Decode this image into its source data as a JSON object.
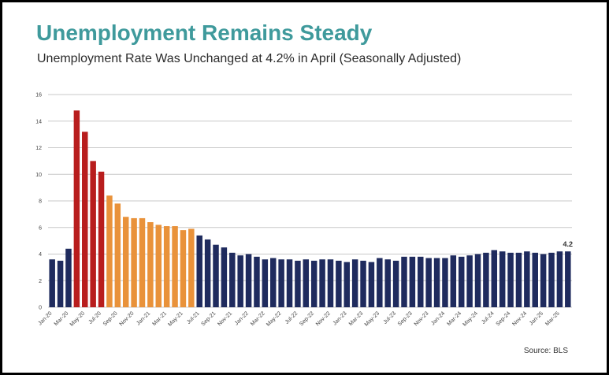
{
  "title": "Unemployment Remains Steady",
  "subtitle": "Unemployment Rate Was Unchanged at 4.2% in April (Seasonally Adjusted)",
  "source": "Source: BLS",
  "chart_data": {
    "type": "bar",
    "ylim": [
      0,
      16
    ],
    "yticks": [
      0,
      2,
      4,
      6,
      8,
      10,
      12,
      14,
      16
    ],
    "grid": true,
    "legend": "none",
    "colors": {
      "navy": "#1f2b5e",
      "red": "#b81d1d",
      "orange": "#e9923a"
    },
    "categories": [
      "Jan-20",
      "Feb-20",
      "Mar-20",
      "Apr-20",
      "May-20",
      "Jun-20",
      "Jul-20",
      "Aug-20",
      "Sep-20",
      "Oct-20",
      "Nov-20",
      "Dec-20",
      "Jan-21",
      "Feb-21",
      "Mar-21",
      "Apr-21",
      "May-21",
      "Jun-21",
      "Jul-21",
      "Aug-21",
      "Sep-21",
      "Oct-21",
      "Nov-21",
      "Dec-21",
      "Jan-22",
      "Feb-22",
      "Mar-22",
      "Apr-22",
      "May-22",
      "Jun-22",
      "Jul-22",
      "Aug-22",
      "Sep-22",
      "Oct-22",
      "Nov-22",
      "Dec-22",
      "Jan-23",
      "Feb-23",
      "Mar-23",
      "Apr-23",
      "May-23",
      "Jun-23",
      "Jul-23",
      "Aug-23",
      "Sep-23",
      "Oct-23",
      "Nov-23",
      "Dec-23",
      "Jan-24",
      "Feb-24",
      "Mar-24",
      "Apr-24",
      "May-24",
      "Jun-24",
      "Jul-24",
      "Aug-24",
      "Sep-24",
      "Oct-24",
      "Nov-24",
      "Dec-24",
      "Jan-25",
      "Feb-25",
      "Mar-25",
      "Apr-25"
    ],
    "values": [
      3.6,
      3.5,
      4.4,
      14.8,
      13.2,
      11.0,
      10.2,
      8.4,
      7.8,
      6.8,
      6.7,
      6.7,
      6.4,
      6.2,
      6.1,
      6.1,
      5.8,
      5.9,
      5.4,
      5.1,
      4.7,
      4.5,
      4.1,
      3.9,
      4.0,
      3.8,
      3.6,
      3.7,
      3.6,
      3.6,
      3.5,
      3.6,
      3.5,
      3.6,
      3.6,
      3.5,
      3.4,
      3.6,
      3.5,
      3.4,
      3.7,
      3.6,
      3.5,
      3.8,
      3.8,
      3.8,
      3.7,
      3.7,
      3.7,
      3.9,
      3.8,
      3.9,
      4.0,
      4.1,
      4.3,
      4.2,
      4.1,
      4.1,
      4.2,
      4.1,
      4.0,
      4.1,
      4.2,
      4.2
    ],
    "bar_colors": [
      "navy",
      "navy",
      "navy",
      "red",
      "red",
      "red",
      "red",
      "orange",
      "orange",
      "orange",
      "orange",
      "orange",
      "orange",
      "orange",
      "orange",
      "orange",
      "orange",
      "orange",
      "navy",
      "navy",
      "navy",
      "navy",
      "navy",
      "navy",
      "navy",
      "navy",
      "navy",
      "navy",
      "navy",
      "navy",
      "navy",
      "navy",
      "navy",
      "navy",
      "navy",
      "navy",
      "navy",
      "navy",
      "navy",
      "navy",
      "navy",
      "navy",
      "navy",
      "navy",
      "navy",
      "navy",
      "navy",
      "navy",
      "navy",
      "navy",
      "navy",
      "navy",
      "navy",
      "navy",
      "navy",
      "navy",
      "navy",
      "navy",
      "navy",
      "navy",
      "navy",
      "navy",
      "navy",
      "navy"
    ],
    "xtick_labels": [
      "Jan-20",
      "Mar-20",
      "May-20",
      "Jul-20",
      "Sep-20",
      "Nov-20",
      "Jan-21",
      "Mar-21",
      "May-21",
      "Jul-21",
      "Sep-21",
      "Nov-21",
      "Jan-22",
      "Mar-22",
      "May-22",
      "Jul-22",
      "Sep-22",
      "Nov-22",
      "Jan-23",
      "Mar-23",
      "May-23",
      "Jul-23",
      "Sep-23",
      "Nov-23",
      "Jan-24",
      "Mar-24",
      "May-24",
      "Jul-24",
      "Sep-24",
      "Nov-24",
      "Jan-25",
      "Mar-25"
    ],
    "annotation": {
      "category": "Apr-25",
      "text": "4.2"
    }
  }
}
